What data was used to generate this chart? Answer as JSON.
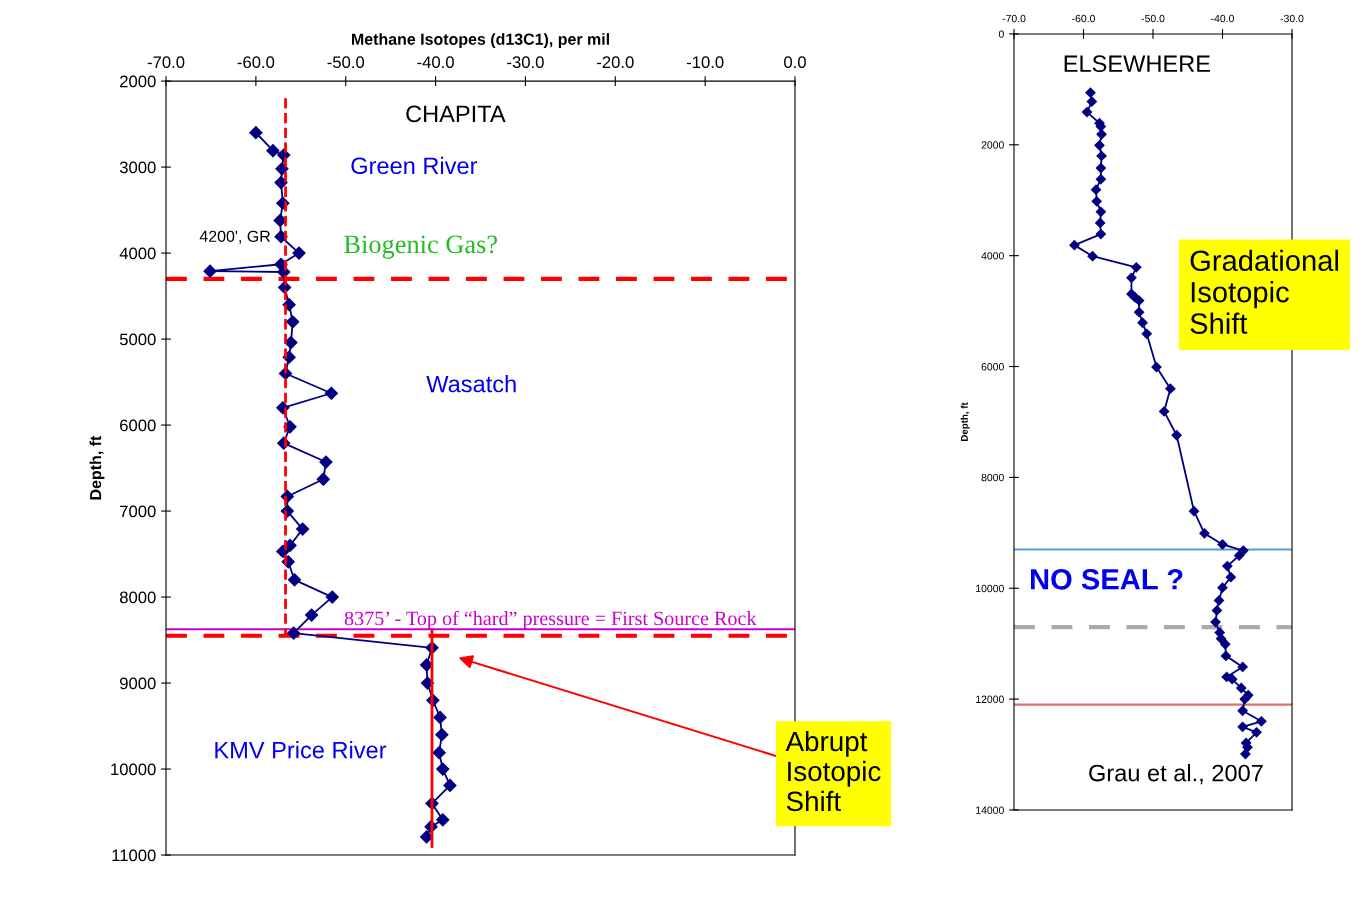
{
  "chart_data": [
    {
      "type": "line",
      "xlabel": "Methane Isotopes (d13C1), per mil",
      "ylabel": "Depth, ft",
      "marker": "diamond",
      "xlim": [
        -70,
        0
      ],
      "xticks": [
        {
          "value": -70,
          "label": "-70.0"
        },
        {
          "value": -60,
          "label": "-60.0"
        },
        {
          "value": -50,
          "label": "-50.0"
        },
        {
          "value": -40,
          "label": "-40.0"
        },
        {
          "value": -30,
          "label": "-30.0"
        },
        {
          "value": -20,
          "label": "-20.0"
        },
        {
          "value": -10,
          "label": "-10.0"
        },
        {
          "value": 0,
          "label": "0.0"
        }
      ],
      "ylim": [
        11000,
        2000
      ],
      "yticks": [
        2000,
        3000,
        4000,
        5000,
        6000,
        7000,
        8000,
        9000,
        10000,
        11000
      ],
      "series": [
        {
          "color": "#000080",
          "x": [
            -60.0,
            -58.1,
            -56.9,
            -57.1,
            -57.2,
            -57.0,
            -57.3,
            -57.2,
            -55.2,
            -57.2,
            -65.1,
            -56.9,
            -56.8,
            -56.3,
            -55.9,
            -56.1,
            -56.3,
            -56.7,
            -51.6,
            -57.0,
            -56.2,
            -56.9,
            -52.2,
            -52.5,
            -56.5,
            -56.5,
            -54.8,
            -56.2,
            -57.0,
            -56.4,
            -55.7,
            -51.5,
            -53.8,
            -55.8,
            -40.4,
            -41.0,
            -40.9,
            -40.3,
            -39.5,
            -39.3,
            -39.6,
            -39.2,
            -38.4,
            -40.4,
            -39.2,
            -40.5,
            -41.0
          ],
          "values": [
            2600,
            2810,
            2860,
            3020,
            3180,
            3420,
            3620,
            3810,
            4000,
            4130,
            4210,
            4220,
            4400,
            4600,
            4800,
            5040,
            5210,
            5400,
            5630,
            5800,
            6020,
            6210,
            6430,
            6630,
            6830,
            7000,
            7210,
            7400,
            7470,
            7590,
            7800,
            8000,
            8210,
            8420,
            8590,
            8790,
            9000,
            9200,
            9400,
            9600,
            9810,
            10000,
            10190,
            10400,
            10590,
            10670,
            10790
          ]
        },
        {
          "type": "line",
          "color": "#ff0000",
          "marker": "none",
          "line_style": "dashed",
          "x": [
            -56.7,
            -56.7
          ],
          "values": [
            2200,
            8450
          ]
        },
        {
          "type": "line",
          "color": "#ff0000",
          "marker": "none",
          "line_style": "solid",
          "x": [
            -40.4,
            -40.4
          ],
          "values": [
            8380,
            10900
          ]
        }
      ],
      "ref_lines": [
        {
          "axis": "y",
          "value": 4300,
          "color": "#ff0000",
          "line_style": "dashed"
        },
        {
          "axis": "y",
          "value": 8450,
          "color": "#ff0000",
          "line_style": "dashed"
        },
        {
          "axis": "y",
          "value": 8375,
          "color": "#cc00cc",
          "line_style": "solid",
          "label": "8375’ - Top of “hard” pressure = First Source Rock"
        }
      ],
      "annotations": [
        "CHAPITA",
        "Green River",
        "Biogenic Gas?",
        "Wasatch",
        "KMV Price River",
        {
          "text": "4200', GR",
          "x": -65.1,
          "y": 4209
        },
        "Abrupt\nIsotopic\nShift"
      ]
    },
    {
      "type": "line",
      "ylabel": "Depth, ft",
      "marker": "diamond",
      "xlim": [
        -70,
        -30
      ],
      "xticks": [
        {
          "value": -70,
          "label": "-70.0"
        },
        {
          "value": -60,
          "label": "-60.0"
        },
        {
          "value": -50,
          "label": "-50.0"
        },
        {
          "value": -40,
          "label": "-40.0"
        },
        {
          "value": -30,
          "label": "-30.0"
        }
      ],
      "ylim": [
        14000,
        0
      ],
      "yticks": [
        0,
        2000,
        4000,
        6000,
        8000,
        10000,
        12000,
        14000
      ],
      "series": [
        {
          "color": "#000080",
          "x": [
            -59.0,
            -58.8,
            -59.5,
            -57.7,
            -57.5,
            -57.4,
            -57.7,
            -57.4,
            -57.5,
            -57.5,
            -58.2,
            -58.1,
            -57.5,
            -57.6,
            -57.5,
            -61.3,
            -58.7,
            -52.4,
            -53.1,
            -53.1,
            -52.6,
            -52.0,
            -52.0,
            -51.5,
            -50.9,
            -49.5,
            -47.5,
            -48.4,
            -46.6,
            -44.1,
            -42.6,
            -40.0,
            -37.0,
            -37.6,
            -39.3,
            -38.8,
            -40.0,
            -40.5,
            -40.8,
            -41.0,
            -40.4,
            -40.2,
            -39.6,
            -39.5,
            -37.1,
            -39.4,
            -38.6,
            -37.3,
            -36.3,
            -36.8,
            -37.1,
            -34.4,
            -37.1,
            -35.1,
            -36.6,
            -36.4,
            -36.7
          ],
          "values": [
            1060,
            1220,
            1410,
            1610,
            1670,
            1810,
            2010,
            2200,
            2420,
            2620,
            2810,
            3020,
            3210,
            3410,
            3610,
            3810,
            4010,
            4210,
            4400,
            4690,
            4750,
            4810,
            5020,
            5210,
            5410,
            6010,
            6400,
            6810,
            7240,
            8610,
            9010,
            9210,
            9320,
            9410,
            9600,
            9800,
            9990,
            10220,
            10400,
            10610,
            10800,
            10910,
            11010,
            11220,
            11420,
            11600,
            11640,
            11800,
            11930,
            12000,
            12210,
            12400,
            12500,
            12600,
            12790,
            12870,
            12990
          ]
        }
      ],
      "ref_lines": [
        {
          "axis": "y",
          "value": 9300,
          "color": "#5b9bd5",
          "line_style": "solid"
        },
        {
          "axis": "y",
          "value": 10700,
          "color": "#aaaaaa",
          "line_style": "dashed"
        },
        {
          "axis": "y",
          "value": 12100,
          "color": "#e07070",
          "line_style": "solid"
        }
      ],
      "annotations": [
        "ELSEWHERE",
        "Gradational\nIsotopic\nShift",
        "NO SEAL ?",
        "Grau et al., 2007"
      ]
    }
  ]
}
